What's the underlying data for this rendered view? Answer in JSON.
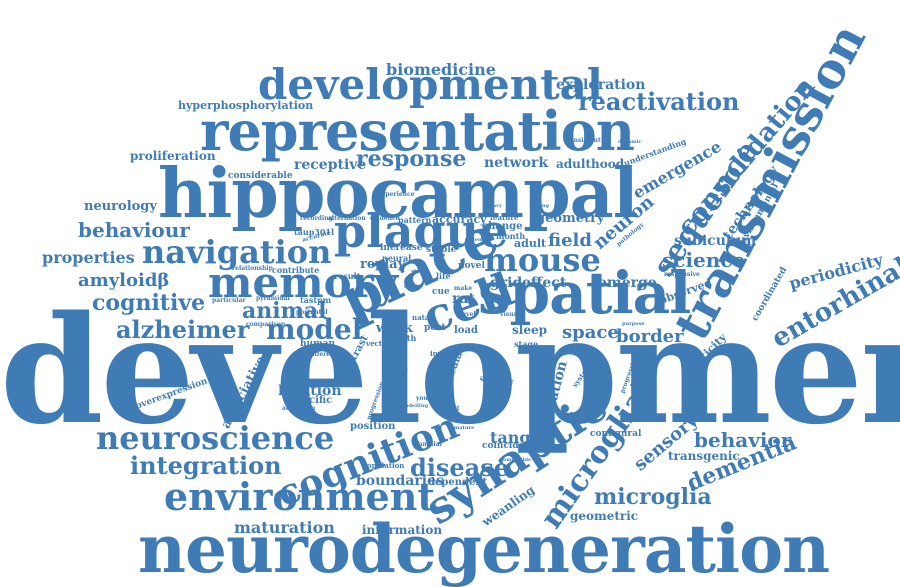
{
  "color": "#3f7bb4",
  "words": [
    "development",
    "neurodegeneration",
    "hippocampal",
    "representation",
    "transmission",
    "spatial",
    "developmental",
    "place",
    "plaque",
    "memory",
    "synaptic",
    "cell",
    "environment",
    "navigation",
    "neuroscience",
    "cognition",
    "mouse",
    "sequence",
    "consolidation",
    "reactivation",
    "response",
    "integration",
    "entorhinal",
    "microglial",
    "microglia",
    "dementia",
    "alzheimer",
    "model",
    "behaviour",
    "cognitive",
    "amyloidβ",
    "animal",
    "disease",
    "behavior",
    "science",
    "sensory",
    "neuron",
    "emergence",
    "technology",
    "periodicity",
    "border",
    "space",
    "field",
    "biomedicine",
    "exploration",
    "hyperphosphorylation",
    "proliferation",
    "receptive",
    "network",
    "adulthood",
    "geometry",
    "subiculum",
    "neurology",
    "properties",
    "replay",
    "grid",
    "effect",
    "emerge",
    "maturation",
    "information",
    "boundaries",
    "tangle",
    "location",
    "associative",
    "formation",
    "transgenic",
    "plasticity",
    "geometric",
    "weanling",
    "biology",
    "contrast",
    "observed",
    "environmental",
    "coordinated",
    "considerable",
    "understanding",
    "accuracy",
    "change",
    "adult",
    "week",
    "rat",
    "sleep",
    "configural",
    "overexpression",
    "position",
    "dependent",
    "coincide",
    "specific",
    "medial",
    "human",
    "increase",
    "stable",
    "novel",
    "result",
    "neural",
    "tastpm",
    "taup301l",
    "relationship",
    "contribute",
    "pattern",
    "month",
    "feature",
    "load",
    "post",
    "natal",
    "life",
    "activation",
    "population",
    "familiar",
    "progression",
    "responsive",
    "pathology",
    "distinct",
    "comparison",
    "experience",
    "alternation",
    "evidence",
    "recording",
    "postnatal",
    "particular",
    "pyramidal",
    "cue",
    "path",
    "stage",
    "visual",
    "input",
    "firing",
    "activity",
    "system",
    "accurate",
    "different",
    "context",
    "level",
    "background",
    "progressive",
    "consistent",
    "compatible",
    "young",
    "mature",
    "heavy",
    "make",
    "recent",
    "vector",
    "remodelling",
    "ageing",
    "influence",
    "purpose",
    "switch",
    "dynamic"
  ]
}
